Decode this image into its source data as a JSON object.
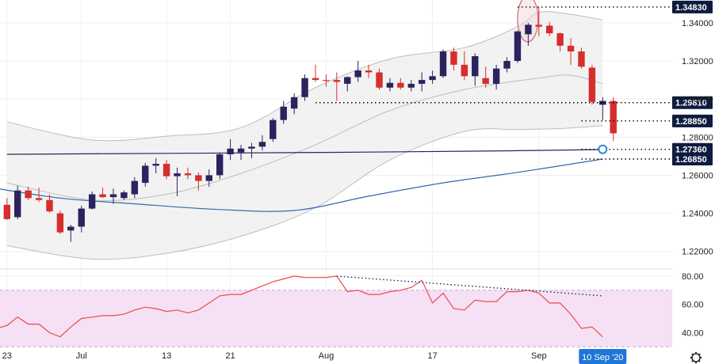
{
  "chart_data": {
    "type": "candlestick",
    "panels": [
      {
        "name": "price",
        "ylim": [
          1.212,
          1.352
        ],
        "y_ticks": [
          "1.34000",
          "1.32000",
          "1.30000",
          "1.28000",
          "1.26000",
          "1.24000",
          "1.22000"
        ],
        "y_tick_values": [
          1.34,
          1.32,
          1.3,
          1.28,
          1.26,
          1.24,
          1.22
        ],
        "levels": [
          {
            "label": "1.34830",
            "value": 1.3483,
            "from_index": 48
          },
          {
            "label": "1.29810",
            "value": 1.2981,
            "from_index": 29
          },
          {
            "label": "1.28850",
            "value": 1.2885,
            "from_index": 54
          },
          {
            "label": "1.27360",
            "value": 1.2736,
            "from_index": 54
          },
          {
            "label": "1.26850",
            "value": 1.2685,
            "from_index": 54
          }
        ],
        "candles": [
          [
            1.2445,
            1.248,
            1.2365,
            1.237
          ],
          [
            1.238,
            1.2545,
            1.237,
            1.252
          ],
          [
            1.252,
            1.254,
            1.247,
            1.248
          ],
          [
            1.248,
            1.2535,
            1.246,
            1.247
          ],
          [
            1.247,
            1.25,
            1.2405,
            1.241
          ],
          [
            1.24,
            1.2415,
            1.229,
            1.23
          ],
          [
            1.231,
            1.234,
            1.225,
            1.233
          ],
          [
            1.233,
            1.244,
            1.23,
            1.2425
          ],
          [
            1.2425,
            1.2515,
            1.242,
            1.25
          ],
          [
            1.25,
            1.2535,
            1.248,
            1.2485
          ],
          [
            1.2485,
            1.253,
            1.245,
            1.25
          ],
          [
            1.248,
            1.252,
            1.247,
            1.251
          ],
          [
            1.25,
            1.259,
            1.248,
            1.257
          ],
          [
            1.256,
            1.2665,
            1.254,
            1.265
          ],
          [
            1.265,
            1.269,
            1.261,
            1.266
          ],
          [
            1.266,
            1.268,
            1.258,
            1.2595
          ],
          [
            1.2595,
            1.264,
            1.249,
            1.261
          ],
          [
            1.261,
            1.264,
            1.258,
            1.26
          ],
          [
            1.26,
            1.2615,
            1.252,
            1.257
          ],
          [
            1.257,
            1.263,
            1.254,
            1.26
          ],
          [
            1.26,
            1.272,
            1.258,
            1.271
          ],
          [
            1.271,
            1.279,
            1.268,
            1.274
          ],
          [
            1.272,
            1.276,
            1.268,
            1.274
          ],
          [
            1.274,
            1.277,
            1.269,
            1.275
          ],
          [
            1.275,
            1.281,
            1.273,
            1.2775
          ],
          [
            1.279,
            1.29,
            1.2775,
            1.289
          ],
          [
            1.289,
            1.299,
            1.287,
            1.296
          ],
          [
            1.295,
            1.303,
            1.292,
            1.301
          ],
          [
            1.301,
            1.313,
            1.299,
            1.311
          ],
          [
            1.311,
            1.318,
            1.309,
            1.31
          ],
          [
            1.31,
            1.313,
            1.3065,
            1.3095
          ],
          [
            1.31,
            1.314,
            1.299,
            1.309
          ],
          [
            1.308,
            1.312,
            1.304,
            1.3115
          ],
          [
            1.3115,
            1.32,
            1.309,
            1.315
          ],
          [
            1.315,
            1.318,
            1.311,
            1.314
          ],
          [
            1.314,
            1.316,
            1.305,
            1.306
          ],
          [
            1.306,
            1.311,
            1.304,
            1.3085
          ],
          [
            1.3085,
            1.311,
            1.305,
            1.306
          ],
          [
            1.306,
            1.31,
            1.304,
            1.308
          ],
          [
            1.308,
            1.314,
            1.304,
            1.31
          ],
          [
            1.31,
            1.315,
            1.308,
            1.312
          ],
          [
            1.312,
            1.326,
            1.311,
            1.325
          ],
          [
            1.325,
            1.327,
            1.315,
            1.318
          ],
          [
            1.318,
            1.325,
            1.31,
            1.312
          ],
          [
            1.312,
            1.324,
            1.307,
            1.3225
          ],
          [
            1.311,
            1.317,
            1.306,
            1.308
          ],
          [
            1.308,
            1.318,
            1.305,
            1.316
          ],
          [
            1.316,
            1.322,
            1.314,
            1.32
          ],
          [
            1.32,
            1.336,
            1.319,
            1.3355
          ],
          [
            1.334,
            1.34,
            1.328,
            1.339
          ],
          [
            1.339,
            1.3483,
            1.333,
            1.338
          ],
          [
            1.3385,
            1.3405,
            1.333,
            1.3345
          ],
          [
            1.3345,
            1.335,
            1.325,
            1.328
          ],
          [
            1.328,
            1.332,
            1.318,
            1.325
          ],
          [
            1.325,
            1.327,
            1.316,
            1.317
          ],
          [
            1.3165,
            1.318,
            1.297,
            1.2985
          ],
          [
            1.297,
            1.301,
            1.289,
            1.299
          ],
          [
            1.299,
            1.301,
            1.278,
            1.282
          ]
        ],
        "bollinger_mid": [
          [
            0,
            1.256
          ],
          [
            8,
            1.247
          ],
          [
            15,
            1.25
          ],
          [
            22,
            1.261
          ],
          [
            29,
            1.276
          ],
          [
            36,
            1.294
          ],
          [
            43,
            1.305
          ],
          [
            50,
            1.311
          ],
          [
            53,
            1.3125
          ],
          [
            56,
            1.308
          ]
        ],
        "bollinger_upper": [
          [
            0,
            1.288
          ],
          [
            8,
            1.2785
          ],
          [
            15,
            1.2805
          ],
          [
            22,
            1.285
          ],
          [
            29,
            1.306
          ],
          [
            36,
            1.321
          ],
          [
            43,
            1.327
          ],
          [
            48,
            1.338
          ],
          [
            50,
            1.3455
          ],
          [
            53,
            1.3445
          ],
          [
            56,
            1.3415
          ]
        ],
        "bollinger_lower": [
          [
            0,
            1.223
          ],
          [
            8,
            1.216
          ],
          [
            15,
            1.219
          ],
          [
            22,
            1.228
          ],
          [
            29,
            1.243
          ],
          [
            36,
            1.268
          ],
          [
            43,
            1.283
          ],
          [
            48,
            1.284
          ],
          [
            52,
            1.2845
          ],
          [
            56,
            1.286
          ]
        ],
        "ma_black": [
          [
            0,
            1.271
          ],
          [
            15,
            1.2715
          ],
          [
            30,
            1.272
          ],
          [
            45,
            1.2727
          ],
          [
            56,
            1.2735
          ]
        ],
        "ma_blue": [
          [
            -2,
            1.254
          ],
          [
            5,
            1.248
          ],
          [
            12,
            1.245
          ],
          [
            20,
            1.242
          ],
          [
            27,
            1.2415
          ],
          [
            34,
            1.249
          ],
          [
            41,
            1.256
          ],
          [
            48,
            1.2615
          ],
          [
            56,
            1.2685
          ]
        ]
      },
      {
        "name": "rsi",
        "ylim": [
          29,
          85
        ],
        "y_ticks": [
          "80.00",
          "60.00",
          "40.00"
        ],
        "y_tick_values": [
          80,
          60,
          40
        ],
        "band": [
          30,
          70
        ],
        "values": [
          [
            -1,
            43
          ],
          [
            0,
            45
          ],
          [
            1,
            51
          ],
          [
            2,
            46
          ],
          [
            3,
            46
          ],
          [
            4,
            40
          ],
          [
            5,
            37
          ],
          [
            6,
            44
          ],
          [
            7,
            50
          ],
          [
            8,
            51
          ],
          [
            9,
            52
          ],
          [
            10,
            52
          ],
          [
            11,
            53
          ],
          [
            12,
            56
          ],
          [
            13,
            58
          ],
          [
            14,
            57
          ],
          [
            15,
            55
          ],
          [
            16,
            56
          ],
          [
            17,
            54
          ],
          [
            18,
            56
          ],
          [
            19,
            61
          ],
          [
            20,
            66
          ],
          [
            21,
            67
          ],
          [
            22,
            67
          ],
          [
            23,
            70
          ],
          [
            24,
            73
          ],
          [
            25,
            76
          ],
          [
            26,
            78
          ],
          [
            27,
            80
          ],
          [
            28,
            79
          ],
          [
            29,
            79
          ],
          [
            30,
            79
          ],
          [
            31,
            80
          ],
          [
            32,
            69
          ],
          [
            33,
            70
          ],
          [
            34,
            67
          ],
          [
            35,
            67
          ],
          [
            36,
            69
          ],
          [
            37,
            70
          ],
          [
            38,
            72
          ],
          [
            39,
            77
          ],
          [
            40,
            61
          ],
          [
            41,
            68
          ],
          [
            42,
            57
          ],
          [
            43,
            56
          ],
          [
            44,
            63
          ],
          [
            45,
            62
          ],
          [
            46,
            62
          ],
          [
            47,
            69
          ],
          [
            48,
            69
          ],
          [
            49,
            70
          ],
          [
            50,
            68
          ],
          [
            51,
            61
          ],
          [
            52,
            61
          ],
          [
            53,
            53
          ],
          [
            54,
            43
          ],
          [
            55,
            44
          ],
          [
            56,
            37
          ]
        ],
        "divergence": [
          [
            31,
            80
          ],
          [
            56,
            66
          ]
        ]
      }
    ],
    "x_labels": [
      {
        "label": "23",
        "index": 0
      },
      {
        "label": "Jul",
        "index": 7
      },
      {
        "label": "13",
        "index": 15
      },
      {
        "label": "21",
        "index": 21
      },
      {
        "label": "Aug",
        "index": 30
      },
      {
        "label": "17",
        "index": 40
      },
      {
        "label": "Sep",
        "index": 50
      }
    ],
    "current_date": {
      "label": "10 Sep '20",
      "index": 56
    }
  },
  "colors": {
    "bull": "#2b235e",
    "bear": "#d62d2d",
    "ma_black": "#1f2a5a",
    "ma_blue": "#3568b0",
    "band": "#bdbdbd",
    "band_fill": "#eeeeee",
    "rsi": "#f04848",
    "rsi_fill": "#f5e0f5",
    "grid": "#eeeeee"
  },
  "icons": {
    "settings": "gear-icon"
  }
}
